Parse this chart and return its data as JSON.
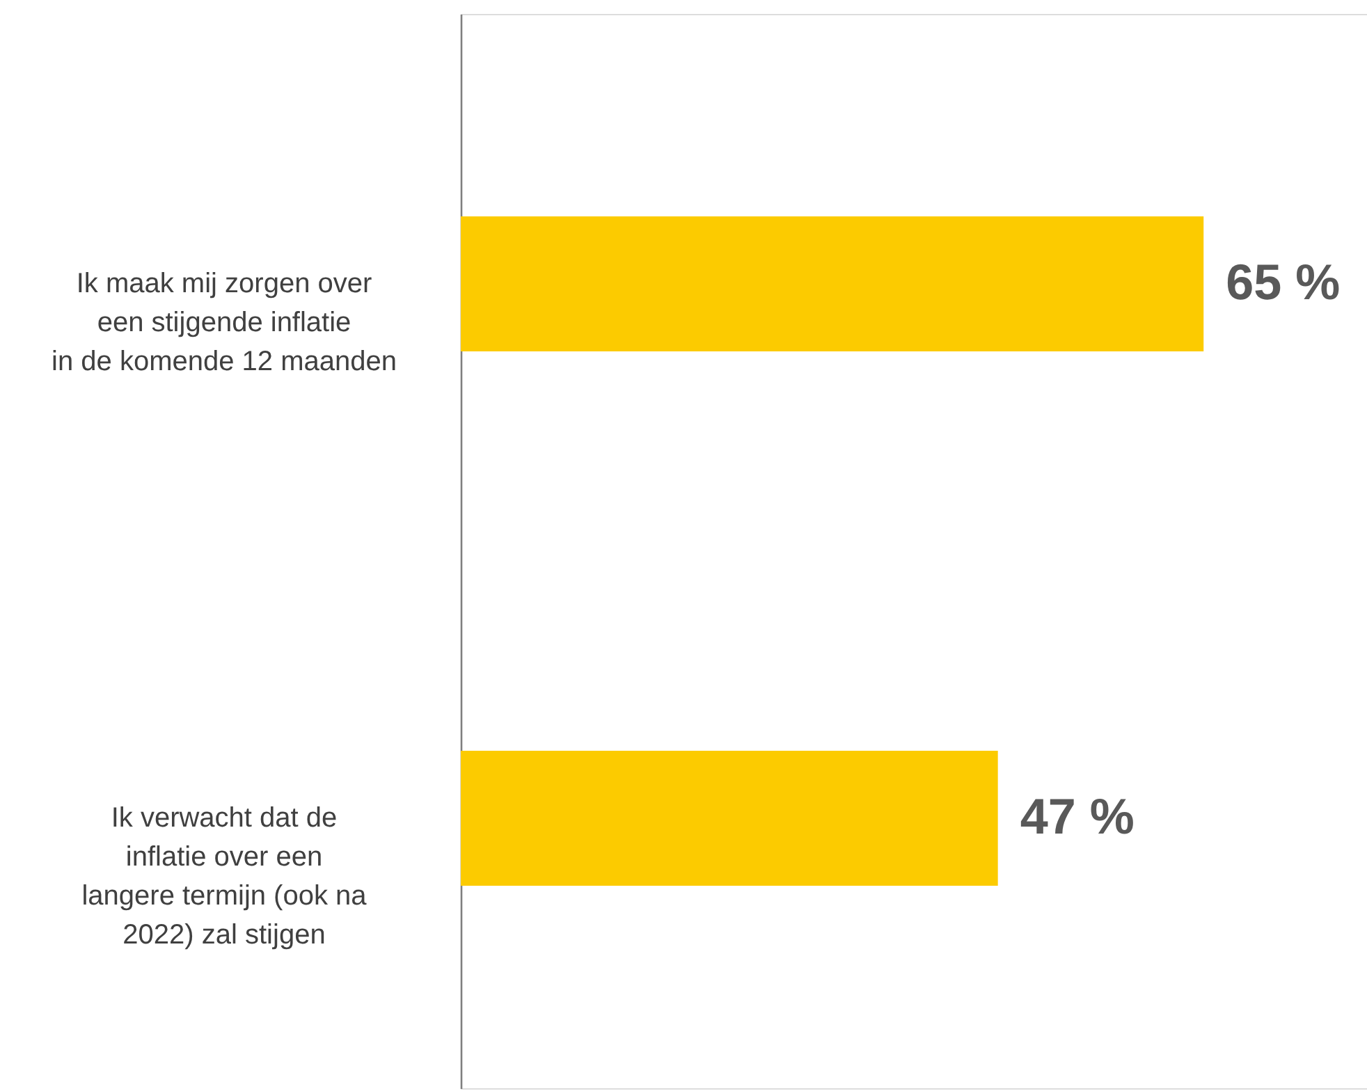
{
  "chart_data": {
    "type": "bar",
    "orientation": "horizontal",
    "categories": [
      "Ik maak mij zorgen over een stijgende inflatie in de komende 12 maanden",
      "Ik verwacht dat de inflatie over een langere termijn (ook na 2022) zal stijgen"
    ],
    "values": [
      65,
      47
    ],
    "color": "#fccb00",
    "value_labels": [
      "65 %",
      "47 %"
    ]
  }
}
